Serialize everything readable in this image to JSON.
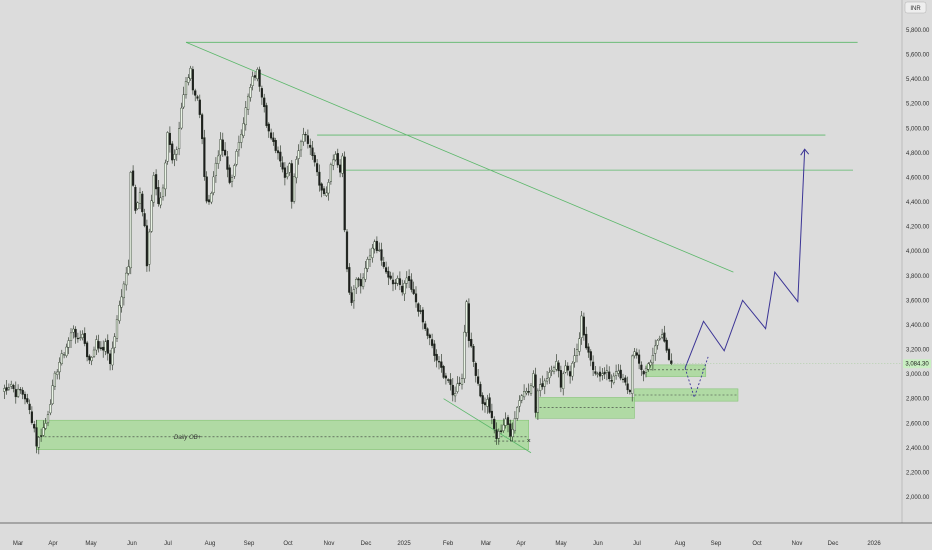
{
  "chart_data": {
    "type": "candlestick",
    "currency": "INR",
    "ylim": [
      1850,
      6000
    ],
    "y_ticks": [
      "5,800.00",
      "5,600.00",
      "5,400.00",
      "5,200.00",
      "5,000.00",
      "4,800.00",
      "4,600.00",
      "4,400.00",
      "4,200.00",
      "4,000.00",
      "3,800.00",
      "3,600.00",
      "3,400.00",
      "3,200.00",
      "3,000.00",
      "2,800.00",
      "2,600.00",
      "2,400.00",
      "2,200.00",
      "2,000.00"
    ],
    "x_ticks": [
      "Mar",
      "Apr",
      "May",
      "Jun",
      "Jul",
      "Aug",
      "Sep",
      "Oct",
      "Nov",
      "Dec",
      "2025",
      "Feb",
      "Mar",
      "Apr",
      "May",
      "Jun",
      "Jul",
      "Aug",
      "Sep",
      "Oct",
      "Nov",
      "Dec",
      "2026"
    ],
    "last_price": 3084.3,
    "last_price_label": "3,084.30",
    "order_block_label": "Daily OB+",
    "price_path": [
      [
        0,
        2870
      ],
      [
        2,
        2890
      ],
      [
        4,
        2920
      ],
      [
        6,
        2840
      ],
      [
        8,
        2870
      ],
      [
        10,
        2810
      ],
      [
        12,
        2700
      ],
      [
        14,
        2560
      ],
      [
        15,
        2430
      ],
      [
        17,
        2520
      ],
      [
        19,
        2600
      ],
      [
        21,
        2780
      ],
      [
        23,
        2980
      ],
      [
        25,
        3100
      ],
      [
        27,
        3180
      ],
      [
        29,
        3270
      ],
      [
        31,
        3380
      ],
      [
        33,
        3260
      ],
      [
        35,
        3340
      ],
      [
        37,
        3150
      ],
      [
        39,
        3120
      ],
      [
        41,
        3290
      ],
      [
        43,
        3180
      ],
      [
        45,
        3240
      ],
      [
        47,
        3100
      ],
      [
        49,
        3310
      ],
      [
        51,
        3550
      ],
      [
        53,
        3750
      ],
      [
        55,
        3900
      ],
      [
        56,
        4670
      ],
      [
        57,
        4540
      ],
      [
        58,
        4320
      ],
      [
        60,
        4450
      ],
      [
        62,
        4210
      ],
      [
        63,
        3880
      ],
      [
        64,
        4160
      ],
      [
        66,
        4620
      ],
      [
        68,
        4400
      ],
      [
        70,
        4500
      ],
      [
        72,
        4980
      ],
      [
        74,
        4720
      ],
      [
        76,
        4800
      ],
      [
        78,
        5150
      ],
      [
        80,
        5380
      ],
      [
        82,
        5500
      ],
      [
        83,
        5320
      ],
      [
        85,
        5250
      ],
      [
        86,
        5100
      ],
      [
        87,
        4900
      ],
      [
        88,
        4620
      ],
      [
        89,
        4380
      ],
      [
        91,
        4480
      ],
      [
        93,
        4720
      ],
      [
        95,
        4880
      ],
      [
        97,
        4760
      ],
      [
        99,
        4560
      ],
      [
        101,
        4680
      ],
      [
        103,
        4900
      ],
      [
        105,
        5060
      ],
      [
        107,
        5250
      ],
      [
        109,
        5400
      ],
      [
        111,
        5460
      ],
      [
        112,
        5360
      ],
      [
        114,
        5200
      ],
      [
        115,
        5050
      ],
      [
        117,
        4900
      ],
      [
        119,
        4840
      ],
      [
        121,
        4760
      ],
      [
        123,
        4600
      ],
      [
        125,
        4720
      ],
      [
        126,
        4420
      ],
      [
        127,
        4620
      ],
      [
        129,
        4840
      ],
      [
        131,
        4980
      ],
      [
        133,
        4900
      ],
      [
        135,
        4800
      ],
      [
        137,
        4650
      ],
      [
        139,
        4480
      ],
      [
        141,
        4460
      ],
      [
        143,
        4680
      ],
      [
        145,
        4780
      ],
      [
        147,
        4650
      ],
      [
        148,
        4800
      ],
      [
        149,
        4150
      ],
      [
        150,
        3880
      ],
      [
        151,
        3690
      ],
      [
        152,
        3600
      ],
      [
        154,
        3800
      ],
      [
        156,
        3720
      ],
      [
        158,
        3860
      ],
      [
        160,
        3960
      ],
      [
        162,
        4100
      ],
      [
        163,
        3980
      ],
      [
        164,
        4000
      ],
      [
        166,
        3850
      ],
      [
        168,
        3790
      ],
      [
        170,
        3710
      ],
      [
        172,
        3780
      ],
      [
        174,
        3650
      ],
      [
        176,
        3780
      ],
      [
        178,
        3680
      ],
      [
        180,
        3590
      ],
      [
        182,
        3480
      ],
      [
        184,
        3360
      ],
      [
        186,
        3280
      ],
      [
        188,
        3150
      ],
      [
        190,
        3080
      ],
      [
        192,
        3000
      ],
      [
        194,
        2950
      ],
      [
        196,
        2820
      ],
      [
        198,
        2910
      ],
      [
        200,
        2980
      ],
      [
        201,
        3340
      ],
      [
        202,
        3600
      ],
      [
        203,
        3300
      ],
      [
        205,
        3100
      ],
      [
        207,
        2930
      ],
      [
        209,
        2750
      ],
      [
        211,
        2780
      ],
      [
        213,
        2620
      ],
      [
        215,
        2480
      ],
      [
        217,
        2550
      ],
      [
        219,
        2640
      ],
      [
        221,
        2490
      ],
      [
        223,
        2660
      ],
      [
        225,
        2800
      ],
      [
        227,
        2860
      ],
      [
        229,
        2880
      ],
      [
        231,
        2990
      ],
      [
        232,
        2690
      ],
      [
        233,
        2860
      ],
      [
        235,
        2920
      ],
      [
        237,
        2980
      ],
      [
        239,
        3060
      ],
      [
        241,
        3090
      ],
      [
        243,
        2920
      ],
      [
        245,
        3080
      ],
      [
        247,
        3000
      ],
      [
        249,
        3150
      ],
      [
        251,
        3280
      ],
      [
        252,
        3450
      ],
      [
        253,
        3290
      ],
      [
        255,
        3150
      ],
      [
        257,
        3040
      ],
      [
        259,
        3020
      ],
      [
        261,
        2990
      ],
      [
        263,
        3000
      ],
      [
        265,
        2950
      ],
      [
        267,
        3040
      ],
      [
        269,
        2960
      ],
      [
        271,
        2920
      ],
      [
        273,
        2850
      ],
      [
        274,
        3170
      ],
      [
        275,
        3170
      ],
      [
        277,
        3080
      ],
      [
        279,
        3010
      ],
      [
        281,
        3080
      ],
      [
        283,
        3160
      ],
      [
        285,
        3260
      ],
      [
        287,
        3320
      ],
      [
        289,
        3200
      ],
      [
        291,
        3084
      ]
    ],
    "order_blocks": [
      {
        "label": "Daily OB+",
        "x0": 15,
        "x1": 229,
        "y_top": 2625,
        "y_bottom": 2385,
        "mid": 2490
      },
      {
        "x0": 232,
        "x1": 275,
        "y_top": 2810,
        "y_bottom": 2640,
        "mid": 2730
      },
      {
        "x0": 275,
        "x1": 320,
        "y_top": 2880,
        "y_bottom": 2780,
        "mid": 2830
      },
      {
        "x0": 280,
        "x1": 306,
        "y_top": 3075,
        "y_bottom": 2980,
        "mid": 3035
      }
    ],
    "horizontal_lines": [
      {
        "x0": 80,
        "x1": 372,
        "y": 5700
      },
      {
        "x0": 137,
        "x1": 358,
        "y": 4945
      },
      {
        "x0": 148,
        "x1": 370,
        "y": 4660
      }
    ],
    "trend_lines": [
      {
        "x0": 80,
        "y0": 5700,
        "x1": 318,
        "y1": 3830
      },
      {
        "x0": 192,
        "y0": 2800,
        "x1": 230,
        "y1": 2360
      }
    ],
    "projection": [
      [
        297,
        3050
      ],
      [
        305,
        3430
      ],
      [
        314,
        3190
      ],
      [
        322,
        3600
      ],
      [
        332,
        3370
      ],
      [
        336,
        3830
      ],
      [
        346,
        3590
      ],
      [
        349,
        4830
      ]
    ],
    "alt_projection": [
      [
        297,
        3050
      ],
      [
        301,
        2810
      ],
      [
        307,
        3140
      ]
    ],
    "low_marker": {
      "x": 229,
      "y": 2455,
      "symbol": "×"
    },
    "colors": {
      "background": "#dcdcdc",
      "candle_up": "#2f3a2a",
      "candle_down": "#1f1f1f",
      "candle_body": "#ffffff",
      "order_block_fill": "#a8d99a",
      "order_block_stroke": "#7cbf6c",
      "guide_line": "#5bb76a",
      "projection": "#3c3596",
      "price_tag": "#c9efc2"
    }
  }
}
